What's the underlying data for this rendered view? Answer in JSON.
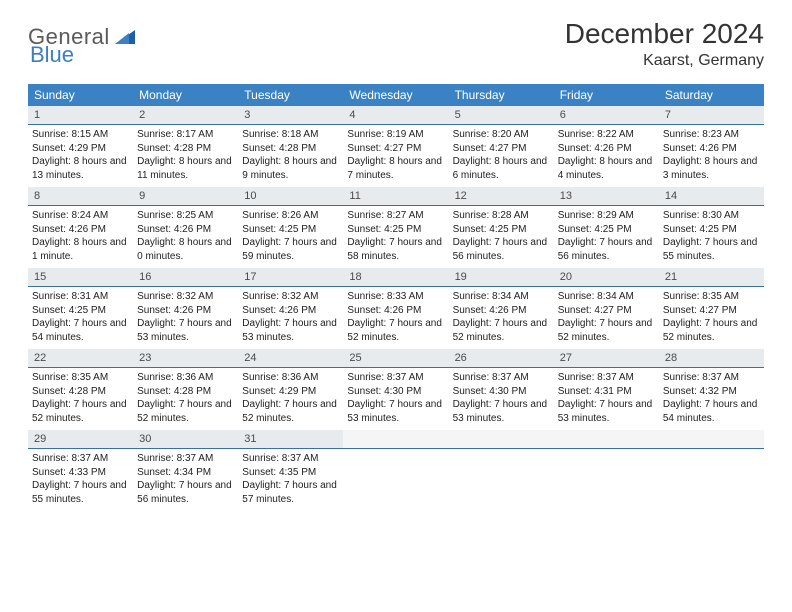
{
  "brand": {
    "name_part1": "General",
    "name_part2": "Blue"
  },
  "title": "December 2024",
  "location": "Kaarst, Germany",
  "colors": {
    "header_bg": "#3b82c4",
    "header_text": "#ffffff",
    "daynum_bg": "#e8ebed",
    "daynum_text": "#4a4a4a",
    "border": "#3b6fa0",
    "body_text": "#222222",
    "title_text": "#333333",
    "logo_gray": "#5a5a5a",
    "logo_blue": "#3b7fbf"
  },
  "weekdays": [
    "Sunday",
    "Monday",
    "Tuesday",
    "Wednesday",
    "Thursday",
    "Friday",
    "Saturday"
  ],
  "weeks": [
    [
      {
        "n": "1",
        "sr": "8:15 AM",
        "ss": "4:29 PM",
        "dl": "8 hours and 13 minutes."
      },
      {
        "n": "2",
        "sr": "8:17 AM",
        "ss": "4:28 PM",
        "dl": "8 hours and 11 minutes."
      },
      {
        "n": "3",
        "sr": "8:18 AM",
        "ss": "4:28 PM",
        "dl": "8 hours and 9 minutes."
      },
      {
        "n": "4",
        "sr": "8:19 AM",
        "ss": "4:27 PM",
        "dl": "8 hours and 7 minutes."
      },
      {
        "n": "5",
        "sr": "8:20 AM",
        "ss": "4:27 PM",
        "dl": "8 hours and 6 minutes."
      },
      {
        "n": "6",
        "sr": "8:22 AM",
        "ss": "4:26 PM",
        "dl": "8 hours and 4 minutes."
      },
      {
        "n": "7",
        "sr": "8:23 AM",
        "ss": "4:26 PM",
        "dl": "8 hours and 3 minutes."
      }
    ],
    [
      {
        "n": "8",
        "sr": "8:24 AM",
        "ss": "4:26 PM",
        "dl": "8 hours and 1 minute."
      },
      {
        "n": "9",
        "sr": "8:25 AM",
        "ss": "4:26 PM",
        "dl": "8 hours and 0 minutes."
      },
      {
        "n": "10",
        "sr": "8:26 AM",
        "ss": "4:25 PM",
        "dl": "7 hours and 59 minutes."
      },
      {
        "n": "11",
        "sr": "8:27 AM",
        "ss": "4:25 PM",
        "dl": "7 hours and 58 minutes."
      },
      {
        "n": "12",
        "sr": "8:28 AM",
        "ss": "4:25 PM",
        "dl": "7 hours and 56 minutes."
      },
      {
        "n": "13",
        "sr": "8:29 AM",
        "ss": "4:25 PM",
        "dl": "7 hours and 56 minutes."
      },
      {
        "n": "14",
        "sr": "8:30 AM",
        "ss": "4:25 PM",
        "dl": "7 hours and 55 minutes."
      }
    ],
    [
      {
        "n": "15",
        "sr": "8:31 AM",
        "ss": "4:25 PM",
        "dl": "7 hours and 54 minutes."
      },
      {
        "n": "16",
        "sr": "8:32 AM",
        "ss": "4:26 PM",
        "dl": "7 hours and 53 minutes."
      },
      {
        "n": "17",
        "sr": "8:32 AM",
        "ss": "4:26 PM",
        "dl": "7 hours and 53 minutes."
      },
      {
        "n": "18",
        "sr": "8:33 AM",
        "ss": "4:26 PM",
        "dl": "7 hours and 52 minutes."
      },
      {
        "n": "19",
        "sr": "8:34 AM",
        "ss": "4:26 PM",
        "dl": "7 hours and 52 minutes."
      },
      {
        "n": "20",
        "sr": "8:34 AM",
        "ss": "4:27 PM",
        "dl": "7 hours and 52 minutes."
      },
      {
        "n": "21",
        "sr": "8:35 AM",
        "ss": "4:27 PM",
        "dl": "7 hours and 52 minutes."
      }
    ],
    [
      {
        "n": "22",
        "sr": "8:35 AM",
        "ss": "4:28 PM",
        "dl": "7 hours and 52 minutes."
      },
      {
        "n": "23",
        "sr": "8:36 AM",
        "ss": "4:28 PM",
        "dl": "7 hours and 52 minutes."
      },
      {
        "n": "24",
        "sr": "8:36 AM",
        "ss": "4:29 PM",
        "dl": "7 hours and 52 minutes."
      },
      {
        "n": "25",
        "sr": "8:37 AM",
        "ss": "4:30 PM",
        "dl": "7 hours and 53 minutes."
      },
      {
        "n": "26",
        "sr": "8:37 AM",
        "ss": "4:30 PM",
        "dl": "7 hours and 53 minutes."
      },
      {
        "n": "27",
        "sr": "8:37 AM",
        "ss": "4:31 PM",
        "dl": "7 hours and 53 minutes."
      },
      {
        "n": "28",
        "sr": "8:37 AM",
        "ss": "4:32 PM",
        "dl": "7 hours and 54 minutes."
      }
    ],
    [
      {
        "n": "29",
        "sr": "8:37 AM",
        "ss": "4:33 PM",
        "dl": "7 hours and 55 minutes."
      },
      {
        "n": "30",
        "sr": "8:37 AM",
        "ss": "4:34 PM",
        "dl": "7 hours and 56 minutes."
      },
      {
        "n": "31",
        "sr": "8:37 AM",
        "ss": "4:35 PM",
        "dl": "7 hours and 57 minutes."
      },
      null,
      null,
      null,
      null
    ]
  ],
  "labels": {
    "sunrise": "Sunrise:",
    "sunset": "Sunset:",
    "daylight": "Daylight:"
  }
}
